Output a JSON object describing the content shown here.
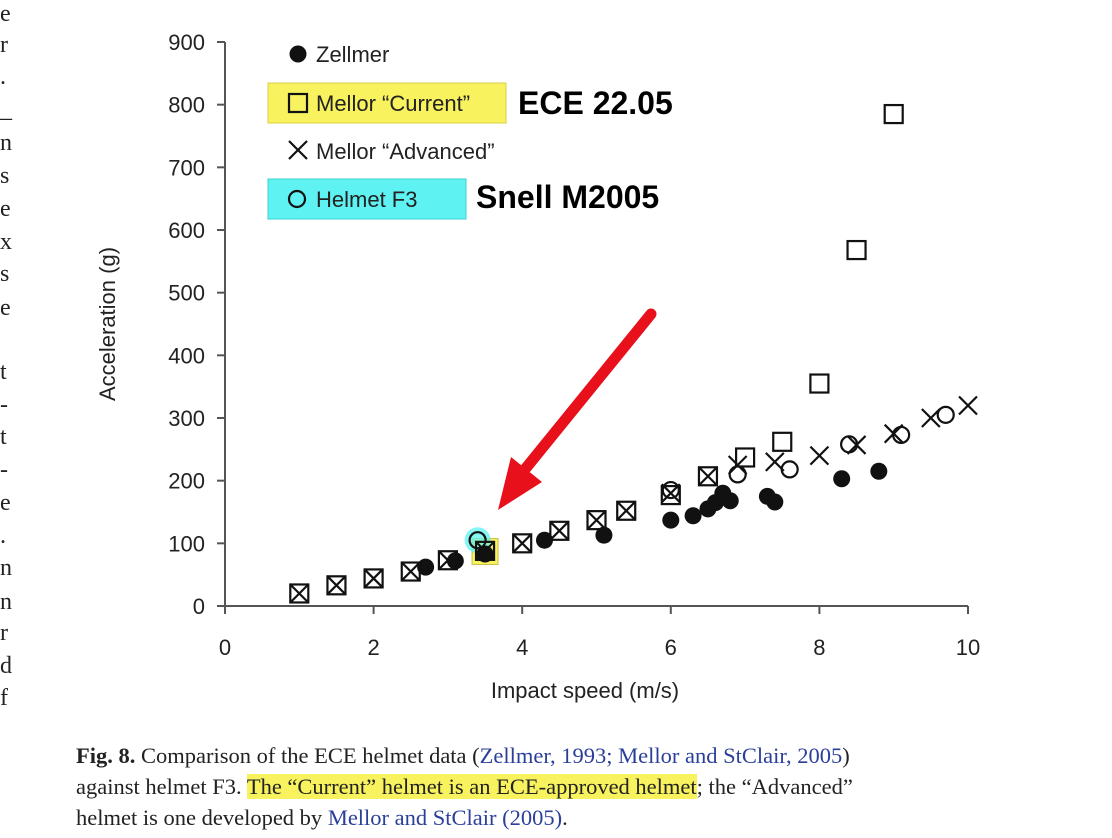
{
  "left_column_letters": [
    "e",
    "r",
    ".",
    "_",
    "n",
    "s",
    "e",
    "x",
    "s",
    "e",
    "",
    "t",
    "-",
    "t",
    "-",
    "e",
    ".",
    "n",
    "n",
    "r",
    "d",
    "f"
  ],
  "chart_data": {
    "type": "scatter",
    "xlabel": "Impact speed (m/s)",
    "ylabel": "Acceleration (g)",
    "xlim": [
      0,
      10
    ],
    "ylim": [
      0,
      900
    ],
    "xticks": [
      0,
      2,
      4,
      6,
      8,
      10
    ],
    "yticks": [
      0,
      100,
      200,
      300,
      400,
      500,
      600,
      700,
      800,
      900
    ],
    "grid": false,
    "legend_position": "top-left",
    "series": [
      {
        "name": "Zellmer",
        "marker": "filled-circle",
        "x": [
          2.7,
          3.1,
          3.5,
          4.3,
          5.1,
          6.0,
          6.3,
          6.5,
          6.6,
          6.7,
          6.8,
          7.3,
          7.4,
          8.3,
          8.8
        ],
        "y": [
          62,
          72,
          83,
          105,
          113,
          137,
          144,
          155,
          165,
          180,
          168,
          175,
          166,
          203,
          215
        ]
      },
      {
        "name": "Mellor “Current”",
        "marker": "open-square",
        "x": [
          1.0,
          1.5,
          2.0,
          2.5,
          3.0,
          3.5,
          4.0,
          4.5,
          5.0,
          5.4,
          6.0,
          6.5,
          7.0,
          7.5,
          8.0,
          8.5,
          9.0
        ],
        "y": [
          20,
          33,
          44,
          55,
          73,
          88,
          100,
          120,
          137,
          152,
          177,
          207,
          237,
          262,
          355,
          568,
          785
        ]
      },
      {
        "name": "Mellor “Advanced”",
        "marker": "x",
        "x": [
          1.0,
          1.5,
          2.0,
          2.5,
          3.0,
          3.5,
          4.0,
          4.5,
          5.0,
          5.4,
          6.0,
          6.5,
          6.9,
          7.4,
          8.0,
          8.5,
          9.0,
          9.5,
          10.0
        ],
        "y": [
          20,
          33,
          44,
          55,
          73,
          88,
          100,
          120,
          137,
          152,
          180,
          207,
          225,
          230,
          240,
          257,
          275,
          300,
          320
        ]
      },
      {
        "name": "Helmet F3",
        "marker": "open-circle",
        "x": [
          3.4,
          6.0,
          6.9,
          7.6,
          8.4,
          9.1,
          9.7
        ],
        "y": [
          105,
          185,
          210,
          218,
          258,
          273,
          305
        ]
      }
    ],
    "annotations": [
      {
        "text": "ECE 22.05",
        "series": "Mellor “Current”"
      },
      {
        "text": "Snell M2005",
        "series": "Helmet F3"
      }
    ],
    "highlighted_point": {
      "x": 3.5,
      "y": 87
    }
  },
  "caption": {
    "fig_label": "Fig. 8.",
    "t1": " Comparison of the ECE helmet data (",
    "ref1": "Zellmer, 1993; Mellor and StClair, 2005",
    "t2": ")",
    "t3": "against helmet F3. ",
    "highlight": "The “Current” helmet is an ECE-approved helmet",
    "t4": "; the “Advanced”",
    "t5": "helmet is one developed by ",
    "ref2": "Mellor and StClair (2005)",
    "t6": "."
  },
  "colors": {
    "marker": "#111111",
    "highlight_yellow": "#f7f25e",
    "highlight_cyan": "#5ef2f2",
    "arrow": "#e8101a",
    "reference_link": "#2a3f9a"
  }
}
